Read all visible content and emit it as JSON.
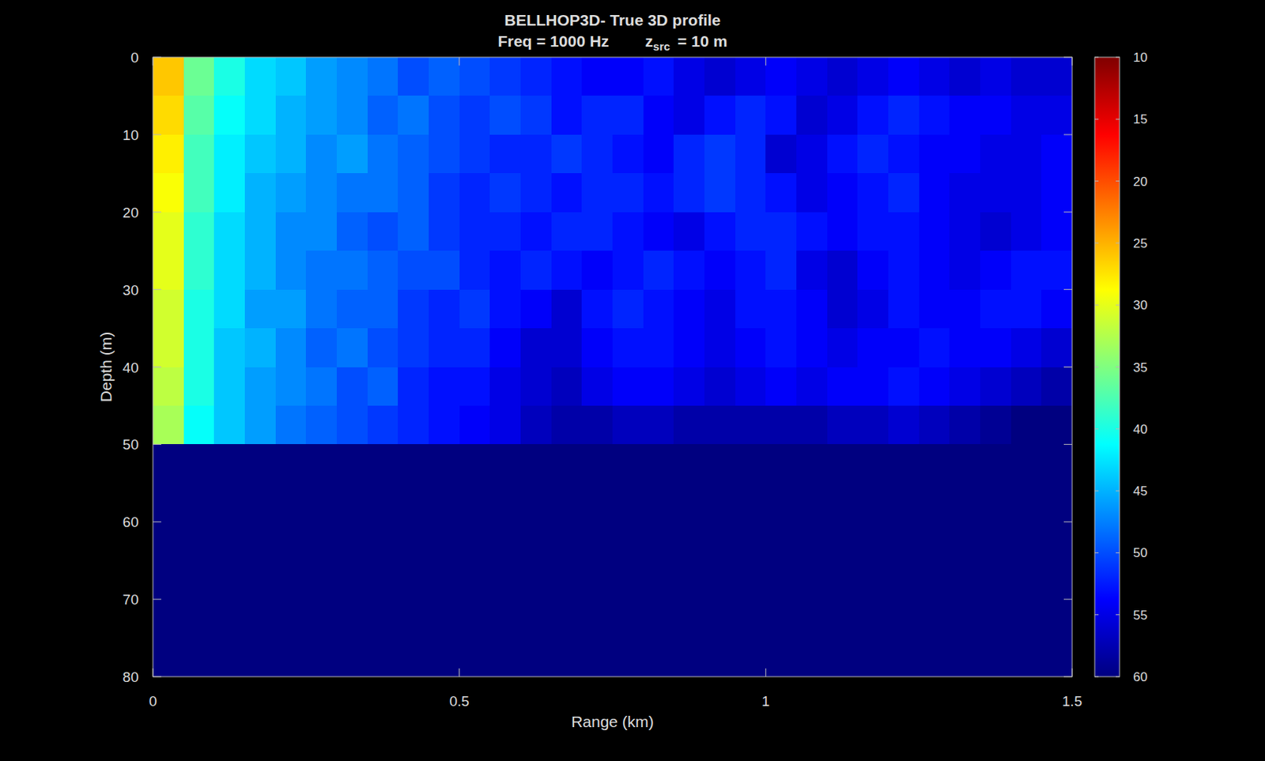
{
  "chart_data": {
    "type": "heatmap",
    "title": "BELLHOP3D-  True  3D  profile",
    "subtitle": {
      "freq": "Freq  =  1000  Hz",
      "source": "z",
      "source_sub": "src",
      "source_value": "=  10  m"
    },
    "x_label": "Range (km)",
    "y_label": "Depth (m)",
    "xlim": [
      0,
      1.5
    ],
    "xticks": [
      0,
      0.5,
      1,
      1.5
    ],
    "ylim": [
      0,
      80
    ],
    "yticks": [
      0,
      10,
      20,
      30,
      40,
      50,
      60,
      70,
      80
    ],
    "zlim": [
      10,
      60
    ],
    "zticks": [
      10,
      15,
      20,
      25,
      30,
      35,
      40,
      45,
      50,
      55,
      60
    ],
    "cells": [
      [
        26,
        36,
        40,
        43,
        44,
        46,
        47,
        48,
        50,
        49,
        50,
        51,
        52,
        53,
        54,
        54,
        53,
        55,
        56,
        55,
        54,
        55,
        56,
        55,
        54,
        55,
        56,
        55,
        56,
        56
      ],
      [
        27,
        37,
        41,
        43,
        45,
        46,
        47,
        49,
        48,
        50,
        51,
        50,
        51,
        53,
        52,
        52,
        54,
        55,
        53,
        52,
        53,
        56,
        55,
        53,
        52,
        53,
        54,
        54,
        55,
        55
      ],
      [
        28,
        38,
        42,
        44,
        45,
        47,
        46,
        48,
        49,
        50,
        51,
        52,
        52,
        51,
        52,
        53,
        54,
        52,
        51,
        52,
        56,
        55,
        53,
        52,
        53,
        54,
        54,
        55,
        55,
        54
      ],
      [
        29,
        38,
        42,
        45,
        46,
        47,
        48,
        48,
        49,
        51,
        52,
        51,
        52,
        53,
        52,
        52,
        53,
        52,
        51,
        52,
        53,
        55,
        54,
        53,
        52,
        54,
        55,
        55,
        55,
        54
      ],
      [
        30,
        39,
        43,
        45,
        47,
        47,
        49,
        50,
        49,
        51,
        52,
        52,
        53,
        52,
        52,
        53,
        54,
        55,
        53,
        52,
        52,
        53,
        54,
        53,
        53,
        54,
        55,
        56,
        55,
        54
      ],
      [
        30,
        39,
        43,
        45,
        47,
        48,
        48,
        49,
        50,
        50,
        52,
        53,
        52,
        53,
        54,
        53,
        52,
        53,
        54,
        53,
        52,
        55,
        56,
        54,
        53,
        54,
        55,
        54,
        53,
        53
      ],
      [
        31,
        40,
        43,
        46,
        46,
        48,
        49,
        49,
        51,
        52,
        51,
        53,
        54,
        56,
        53,
        52,
        53,
        54,
        55,
        53,
        53,
        54,
        56,
        55,
        53,
        54,
        54,
        53,
        53,
        54
      ],
      [
        31,
        40,
        44,
        45,
        47,
        49,
        48,
        50,
        51,
        52,
        52,
        54,
        56,
        56,
        54,
        53,
        53,
        54,
        55,
        54,
        53,
        54,
        55,
        54,
        54,
        53,
        54,
        54,
        55,
        56
      ],
      [
        32,
        40,
        44,
        46,
        47,
        48,
        50,
        49,
        52,
        53,
        53,
        55,
        56,
        57,
        55,
        54,
        54,
        55,
        56,
        55,
        54,
        55,
        54,
        54,
        53,
        54,
        55,
        56,
        57,
        58
      ],
      [
        33,
        41,
        44,
        46,
        48,
        49,
        50,
        51,
        52,
        53,
        54,
        55,
        57,
        58,
        58,
        57,
        57,
        58,
        58,
        58,
        58,
        58,
        57,
        57,
        56,
        57,
        58,
        59,
        60,
        60
      ],
      [
        60,
        60,
        60,
        60,
        60,
        60,
        60,
        60,
        60,
        60,
        60,
        60,
        60,
        60,
        60,
        60,
        60,
        60,
        60,
        60,
        60,
        60,
        60,
        60,
        60,
        60,
        60,
        60,
        60,
        60
      ],
      [
        60,
        60,
        60,
        60,
        60,
        60,
        60,
        60,
        60,
        60,
        60,
        60,
        60,
        60,
        60,
        60,
        60,
        60,
        60,
        60,
        60,
        60,
        60,
        60,
        60,
        60,
        60,
        60,
        60,
        60
      ],
      [
        60,
        60,
        60,
        60,
        60,
        60,
        60,
        60,
        60,
        60,
        60,
        60,
        60,
        60,
        60,
        60,
        60,
        60,
        60,
        60,
        60,
        60,
        60,
        60,
        60,
        60,
        60,
        60,
        60,
        60
      ],
      [
        60,
        60,
        60,
        60,
        60,
        60,
        60,
        60,
        60,
        60,
        60,
        60,
        60,
        60,
        60,
        60,
        60,
        60,
        60,
        60,
        60,
        60,
        60,
        60,
        60,
        60,
        60,
        60,
        60,
        60
      ],
      [
        60,
        60,
        60,
        60,
        60,
        60,
        60,
        60,
        60,
        60,
        60,
        60,
        60,
        60,
        60,
        60,
        60,
        60,
        60,
        60,
        60,
        60,
        60,
        60,
        60,
        60,
        60,
        60,
        60,
        60
      ],
      [
        60,
        60,
        60,
        60,
        60,
        60,
        60,
        60,
        60,
        60,
        60,
        60,
        60,
        60,
        60,
        60,
        60,
        60,
        60,
        60,
        60,
        60,
        60,
        60,
        60,
        60,
        60,
        60,
        60,
        60
      ]
    ]
  }
}
